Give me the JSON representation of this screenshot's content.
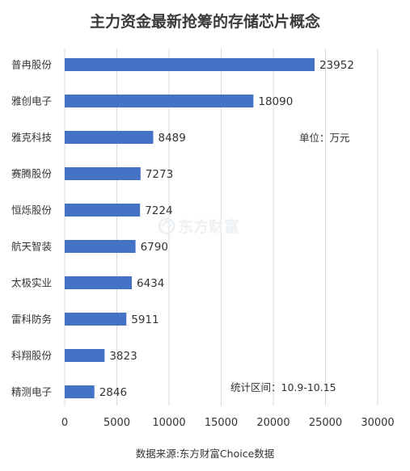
{
  "chart_data": {
    "type": "bar",
    "orientation": "horizontal",
    "title": "主力资金最新抢筹的存储芯片概念",
    "categories": [
      "普冉股份",
      "雅创电子",
      "雅克科技",
      "赛腾股份",
      "恒烁股份",
      "航天智装",
      "太极实业",
      "雷科防务",
      "科翔股份",
      "精测电子"
    ],
    "values": [
      23952,
      18090,
      8489,
      7273,
      7224,
      6790,
      6434,
      5911,
      3823,
      2846
    ],
    "xlim": [
      0,
      30000
    ],
    "xticks": [
      "0",
      "5000",
      "10000",
      "15000",
      "20000",
      "25000",
      "30000"
    ],
    "grid": true,
    "bar_color": "#4472c4",
    "unit_note": "单位：万元",
    "period_note": "统计区间：10.9-10.15",
    "watermark": "东方财富",
    "source": "数据来源:东方财富Choice数据"
  }
}
